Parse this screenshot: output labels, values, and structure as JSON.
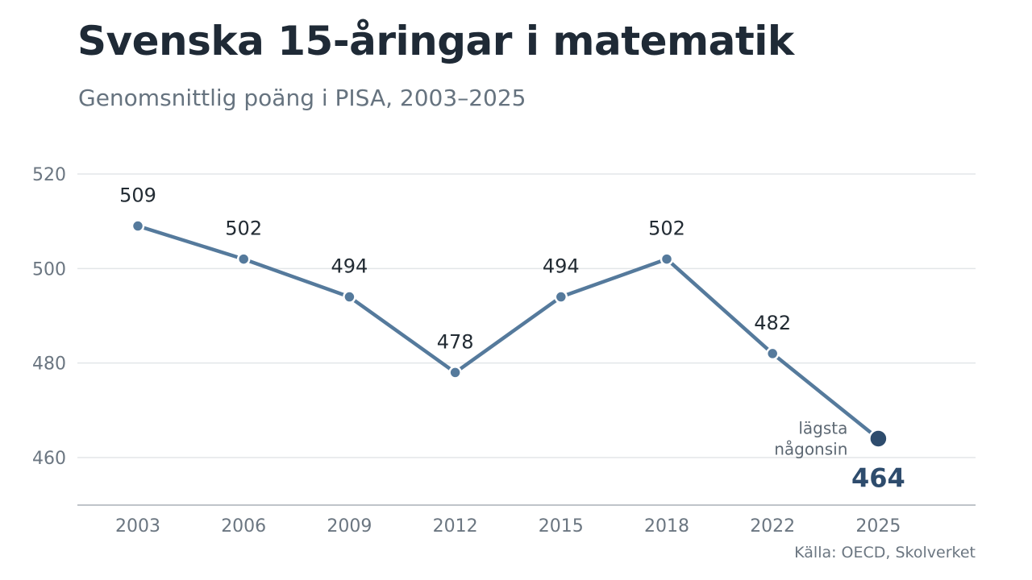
{
  "chart_data": {
    "type": "line",
    "title": "Svenska 15-åringar i matematik",
    "subtitle": "Genomsnittlig poäng i PISA, 2003–2025",
    "source": "Källa: OECD, Skolverket",
    "x": [
      2003,
      2006,
      2009,
      2012,
      2015,
      2018,
      2022,
      2025
    ],
    "series": [
      {
        "values": [
          509,
          502,
          494,
          478,
          494,
          502,
          482,
          464
        ]
      }
    ],
    "ylim": [
      450,
      520
    ],
    "yticks": [
      460,
      480,
      500,
      520
    ],
    "grid": true,
    "annotation": {
      "x": 2025,
      "lines": [
        "lägsta",
        "någonsin"
      ]
    },
    "colors": {
      "line": "#557a9c",
      "highlight": "#2e4c6d"
    }
  }
}
